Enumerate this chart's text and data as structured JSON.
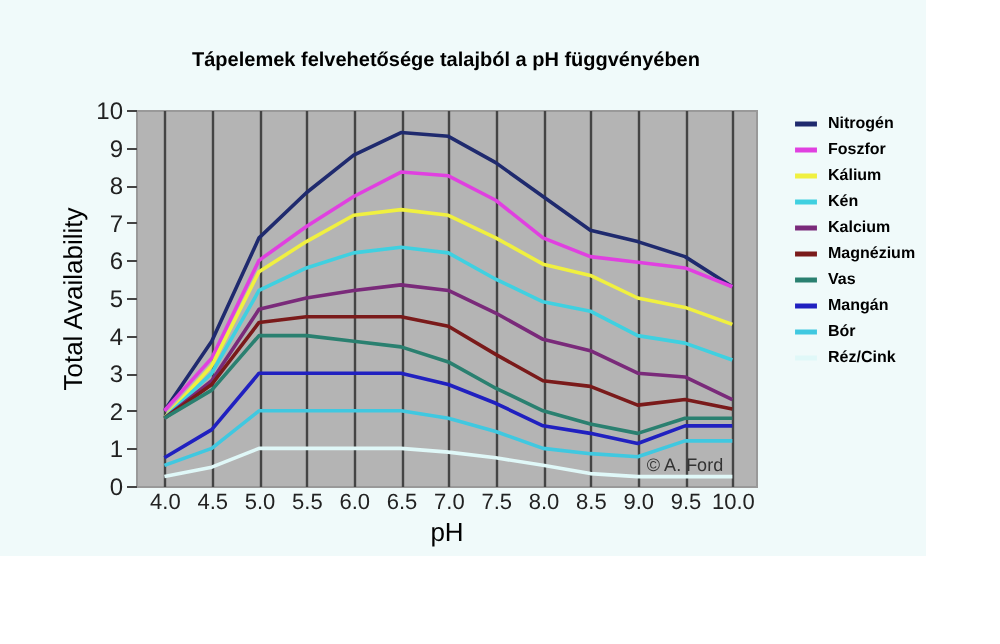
{
  "chart_data": {
    "type": "line",
    "title": "Tápelemek felvehetősége talajból a pH függvényében",
    "xlabel": "pH",
    "ylabel": "Total Availability",
    "x": [
      4.0,
      4.5,
      5.0,
      5.5,
      6.0,
      6.5,
      7.0,
      7.5,
      8.0,
      8.5,
      9.0,
      9.5,
      10.0
    ],
    "xlim": [
      3.7,
      10.25
    ],
    "xticks": [
      {
        "value": 4,
        "label": "4.0"
      },
      4.5,
      {
        "value": 5,
        "label": "5.0"
      },
      5.5,
      {
        "value": 6,
        "label": "6.0"
      },
      6.5,
      {
        "value": 7,
        "label": "7.0"
      },
      7.5,
      {
        "value": 8,
        "label": "8.0"
      },
      8.5,
      {
        "value": 9,
        "label": "9.0"
      },
      9.5,
      {
        "value": 10,
        "label": "10.0"
      }
    ],
    "ylim": [
      0,
      10
    ],
    "yticks": [
      0,
      1,
      2,
      3,
      4,
      5,
      6,
      7,
      8,
      9,
      10
    ],
    "grid": "x",
    "legend": "right",
    "marker": "none",
    "line_style": "solid",
    "annotations": [
      {
        "text": "© A. Ford",
        "x": 9.5,
        "y": 0.55
      }
    ],
    "series": [
      {
        "name": "Nitrogén",
        "color": "#1f2a6e",
        "values": [
          2.0,
          3.85,
          6.6,
          7.8,
          8.8,
          9.4,
          9.3,
          8.6,
          7.7,
          6.8,
          6.5,
          6.1,
          5.3
        ]
      },
      {
        "name": "Foszfor",
        "color": "#e040e0",
        "values": [
          2.0,
          3.4,
          6.0,
          6.9,
          7.7,
          8.35,
          8.25,
          7.6,
          6.6,
          6.1,
          5.95,
          5.8,
          5.3
        ]
      },
      {
        "name": "Kálium",
        "color": "#f0f040",
        "values": [
          1.8,
          3.2,
          5.7,
          6.5,
          7.2,
          7.35,
          7.2,
          6.6,
          5.9,
          5.6,
          5.0,
          4.75,
          4.3
        ]
      },
      {
        "name": "Kén",
        "color": "#40d0e0",
        "values": [
          1.8,
          3.0,
          5.2,
          5.8,
          6.2,
          6.35,
          6.2,
          5.5,
          4.9,
          4.65,
          4.0,
          3.8,
          3.35
        ]
      },
      {
        "name": "Kalcium",
        "color": "#7a2a7a",
        "values": [
          1.8,
          2.8,
          4.7,
          5.0,
          5.2,
          5.35,
          5.2,
          4.6,
          3.9,
          3.6,
          3.0,
          2.9,
          2.3
        ]
      },
      {
        "name": "Magnézium",
        "color": "#7a1a1a",
        "values": [
          1.8,
          2.7,
          4.35,
          4.5,
          4.5,
          4.5,
          4.25,
          3.5,
          2.8,
          2.65,
          2.15,
          2.3,
          2.05
        ]
      },
      {
        "name": "Vas",
        "color": "#2a8070",
        "values": [
          1.8,
          2.55,
          4.0,
          4.0,
          3.85,
          3.7,
          3.3,
          2.6,
          2.0,
          1.65,
          1.4,
          1.8,
          1.8
        ]
      },
      {
        "name": "Mangán",
        "color": "#2020c0",
        "values": [
          0.75,
          1.5,
          3.0,
          3.0,
          3.0,
          3.0,
          2.7,
          2.2,
          1.6,
          1.4,
          1.13,
          1.6,
          1.6
        ]
      },
      {
        "name": "Bór",
        "color": "#40c8e0",
        "values": [
          0.55,
          1.0,
          2.0,
          2.0,
          2.0,
          2.0,
          1.8,
          1.45,
          1.0,
          0.86,
          0.78,
          1.2,
          1.2
        ]
      },
      {
        "name": "Réz/Cink",
        "color": "#e0f8f8",
        "values": [
          0.25,
          0.5,
          1.0,
          1.0,
          1.0,
          1.0,
          0.9,
          0.75,
          0.55,
          0.33,
          0.25,
          0.25,
          0.25
        ]
      }
    ]
  }
}
